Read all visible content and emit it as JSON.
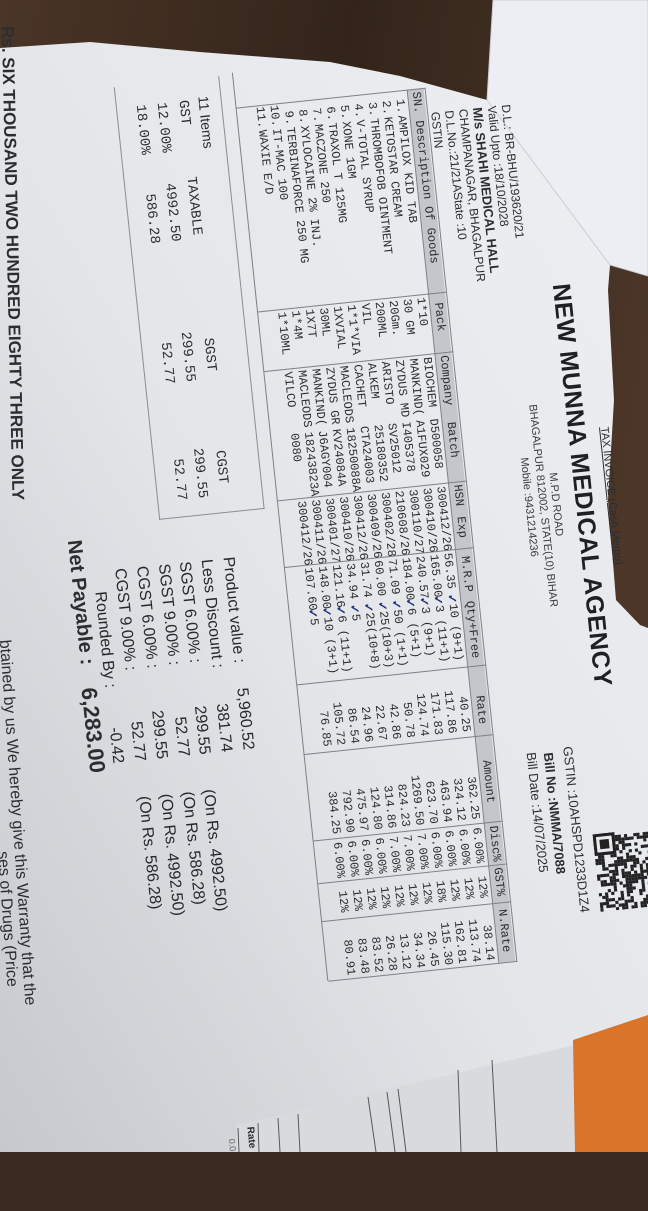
{
  "header": {
    "doc_type": "TAX INVOICE (Cash Memo)",
    "company": "NEW MUNNA MEDICAL AGENCY",
    "address1": "M.P.D ROAD",
    "address2": "BHAGALPUR 812002, STATE(10) BIHAR",
    "mobile": "Mobile :9431214236",
    "gstin": "GSTIN :10AHSPD1233D1Z4",
    "bill_no": "Bill No  :NMMA/7088",
    "bill_date": "Bill Date :14/07/2025"
  },
  "customer": {
    "dl": "D.L.: BR-BHU/193620/21",
    "valid_upto": "Valid Upto :18/10/2028",
    "name": "M/s SHAHI MEDICAL HALL",
    "address": "CHAMPANAGAR, BHAGALPUR",
    "dl_no": "D.L.No.:21/21AState :10",
    "gstin": "GSTIN"
  },
  "table": {
    "columns": {
      "sn_desc": "SN. Description Of Goods",
      "pack": "Pack",
      "company": "Company",
      "batch": "Batch",
      "hsn": "HSN",
      "exp": "Exp",
      "mrp": "M.R.P",
      "qty": "Qty+Free",
      "rate": "Rate",
      "amount": "Amount",
      "disc": "Disc%",
      "gst": "GST%",
      "nrate": "N.Rate"
    },
    "rows": [
      {
        "sn": "1.",
        "desc": "AMPILOX KID TAB",
        "pack": "1*10",
        "company": "BIOCHEM",
        "batch": "D500058",
        "hsn": "3004",
        "exp": "12/26",
        "mrp": "56.35",
        "qty": "10 (9+1)",
        "rate": "40.25",
        "amount": "362.25",
        "disc": "6.00%",
        "gst": "12%",
        "nrate": "38.14"
      },
      {
        "sn": "2.",
        "desc": "KETOSTAR CREAM",
        "pack": "30 GM",
        "company": "MANKIND(",
        "batch": "A1FUX029",
        "hsn": "3004",
        "exp": "10/26",
        "mrp": "165.00",
        "qty": "3 (11+1)",
        "rate": "117.86",
        "amount": "324.12",
        "disc": "6.00%",
        "gst": "12%",
        "nrate": "113.74"
      },
      {
        "sn": "3.",
        "desc": "THROMBOFOB OINTMENT",
        "pack": "20Gm.",
        "company": "ZYDUS MD",
        "batch": "I405378",
        "hsn": "3001",
        "exp": "10/27",
        "mrp": "240.57",
        "qty": "3 (9+1)",
        "rate": "171.83",
        "amount": "463.94",
        "disc": "6.00%",
        "gst": "12%",
        "nrate": "162.81"
      },
      {
        "sn": "4.",
        "desc": "V-TOTAL SYRUP",
        "pack": "200ML",
        "company": "ARISTO",
        "batch": "SV25012",
        "hsn": "2106",
        "exp": "08/26",
        "mrp": "184.00",
        "qty": "6 (5+1)",
        "rate": "124.74",
        "amount": "623.70",
        "disc": "6.00%",
        "gst": "18%",
        "nrate": "115.30"
      },
      {
        "sn": "5.",
        "desc": "XONE 1GM",
        "pack": "VIL",
        "company": "ALKEM",
        "batch": "25180352",
        "hsn": "3004",
        "exp": "02/28",
        "mrp": "71.09",
        "qty": "50 (1+1)",
        "rate": "50.78",
        "amount": "1269.50",
        "disc": "7.00%",
        "gst": "12%",
        "nrate": "26.45"
      },
      {
        "sn": "6.",
        "desc": "TRAXOL T 125MG",
        "pack": "1*1*VIA",
        "company": "CACHET",
        "batch": "CTA24003",
        "hsn": "3004",
        "exp": "09/26",
        "mrp": "60.00",
        "qty": "25(10+3)",
        "rate": "42.86",
        "amount": "824.23",
        "disc": "7.00%",
        "gst": "12%",
        "nrate": "34.34"
      },
      {
        "sn": "7.",
        "desc": "MACZONE 250",
        "pack": "1XVIAL",
        "company": "MACLEODS",
        "batch": "18250088A",
        "hsn": "3004",
        "exp": "12/26",
        "mrp": "31.74",
        "qty": "25(10+8)",
        "rate": "22.67",
        "amount": "314.86",
        "disc": "7.00%",
        "gst": "12%",
        "nrate": "13.12"
      },
      {
        "sn": "8.",
        "desc": "XYLOCAINE 2% INJ.",
        "pack": "30ML",
        "company": "ZYDUS GR",
        "batch": "KV24084A",
        "hsn": "3004",
        "exp": "10/26",
        "mrp": "34.94",
        "qty": "5",
        "rate": "24.96",
        "amount": "124.80",
        "disc": "6.00%",
        "gst": "12%",
        "nrate": "26.28"
      },
      {
        "sn": "9.",
        "desc": "TERBINAFORCE 250 MG",
        "pack": "1X7T",
        "company": "MANKIND(",
        "batch": "J6AGY004",
        "hsn": "3004",
        "exp": "01/27",
        "mrp": "121.16",
        "qty": "6 (11+1)",
        "rate": "86.54",
        "amount": "475.97",
        "disc": "6.00%",
        "gst": "12%",
        "nrate": "83.52"
      },
      {
        "sn": "10.",
        "desc": "IT-MAC 100",
        "pack": "1*4M",
        "company": "MACLEODS",
        "batch": "18243823A",
        "hsn": "3004",
        "exp": "11/26",
        "mrp": "148.00",
        "qty": "10 (3+1)",
        "rate": "105.72",
        "amount": "792.90",
        "disc": "6.00%",
        "gst": "12%",
        "nrate": "83.48"
      },
      {
        "sn": "11.",
        "desc": "WAXIE E/D",
        "pack": "1*10ML",
        "company": "VILCO",
        "batch": "0080",
        "hsn": "3004",
        "exp": "12/26",
        "mrp": "107.60",
        "qty": "5",
        "rate": "76.85",
        "amount": "384.25",
        "disc": "6.00%",
        "gst": "12%",
        "nrate": "80.91"
      }
    ]
  },
  "gst_summary": {
    "items_count": "11 Items",
    "headers": {
      "gst": "GST",
      "taxable": "TAXABLE",
      "sgst": "SGST",
      "cgst": "CGST"
    },
    "rows": [
      {
        "gst": "12.00%",
        "taxable": "4992.50",
        "sgst": "299.55",
        "cgst": "299.55"
      },
      {
        "gst": "18.00%",
        "taxable": "586.28",
        "sgst": "52.77",
        "cgst": "52.77"
      }
    ]
  },
  "totals": [
    {
      "label": "Product value :",
      "value": "5,960.52",
      "note": ""
    },
    {
      "label": "Less Discount :",
      "value": "381.74",
      "note": ""
    },
    {
      "label": "SGST 6.00% :",
      "value": "299.55",
      "note": "(On Rs. 4992.50)"
    },
    {
      "label": "SGST 9.00% :",
      "value": "52.77",
      "note": "(On Rs. 586.28)"
    },
    {
      "label": "CGST 6.00% :",
      "value": "299.55",
      "note": "(On Rs. 4992.50)"
    },
    {
      "label": "CGST 9.00% :",
      "value": "52.77",
      "note": "(On Rs. 586.28)"
    },
    {
      "label": "Rounded  By :",
      "value": "-0.42",
      "note": ""
    }
  ],
  "net_payable": {
    "label": "Net Payable  :",
    "value": "6,283.00"
  },
  "amount_in_words": "Rs. SIX THOUSAND TWO HUNDRED EIGHTY THREE ONLY",
  "warranty": [
    "btained by us We hereby give this Warranty that the",
    "ses of Drugs (Price"
  ],
  "background_document": {
    "label": "Rate",
    "value": "0.0"
  },
  "colors": {
    "paper": "#e4e6ea",
    "wood": "#3a291e",
    "orange_sheet": "#d9742a",
    "header_band": "#c3c6cb",
    "tick_ink": "#23337e"
  }
}
